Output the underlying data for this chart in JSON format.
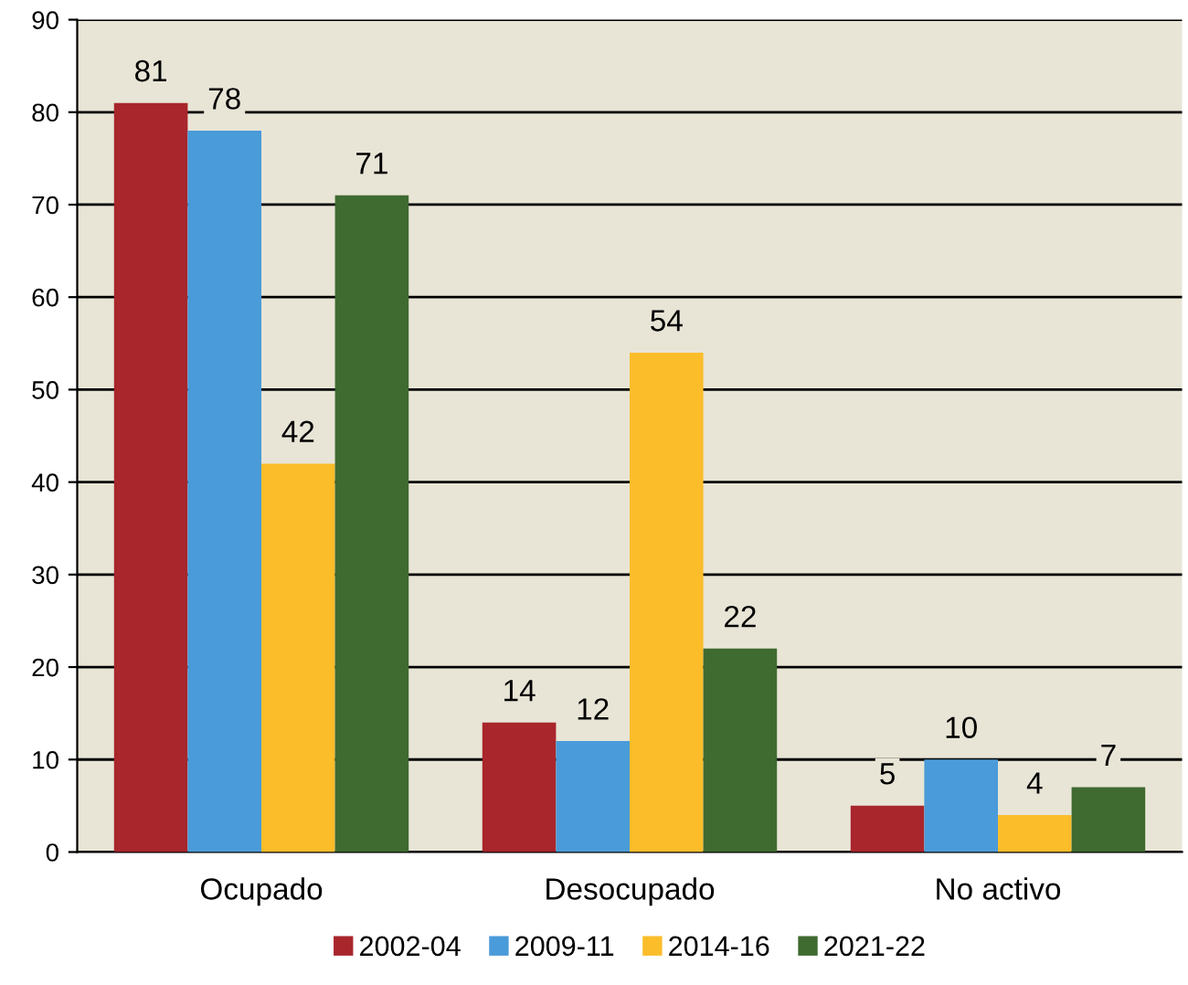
{
  "chart_data": {
    "type": "bar",
    "categories": [
      "Ocupado",
      "Desocupado",
      "No activo"
    ],
    "series": [
      {
        "name": "2002-04",
        "color": "#a8262c",
        "values": [
          81,
          14,
          5
        ]
      },
      {
        "name": "2009-11",
        "color": "#4a9bd9",
        "values": [
          78,
          12,
          10
        ]
      },
      {
        "name": "2014-16",
        "color": "#fbbd2a",
        "values": [
          42,
          54,
          4
        ]
      },
      {
        "name": "2021-22",
        "color": "#3f6a30",
        "values": [
          71,
          22,
          7
        ]
      }
    ],
    "ylim": [
      0,
      90
    ],
    "yticks": [
      0,
      10,
      20,
      30,
      40,
      50,
      60,
      70,
      80,
      90
    ],
    "grid": "y",
    "legend": "bottom",
    "data_labels": true
  }
}
